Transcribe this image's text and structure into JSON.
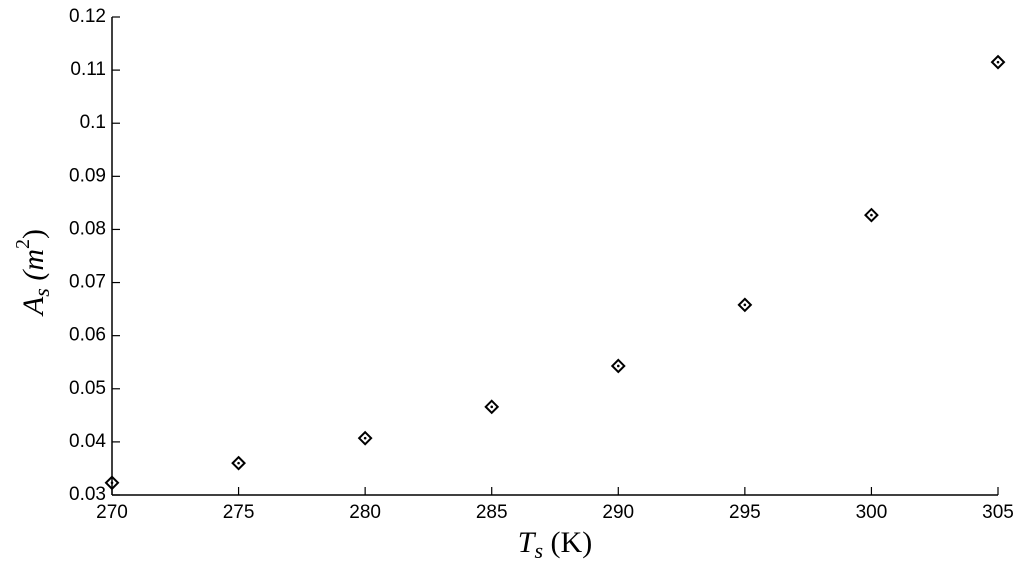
{
  "chart_data": {
    "type": "scatter",
    "xlabel": [
      "T",
      "s",
      " (K)"
    ],
    "ylabel": [
      "A",
      "s",
      " (m",
      "2",
      ")"
    ],
    "x": [
      270,
      275,
      280,
      285,
      290,
      295,
      300,
      305
    ],
    "values": [
      0.0323,
      0.036,
      0.0407,
      0.0466,
      0.0543,
      0.0658,
      0.0827,
      0.1115
    ],
    "color": "#000000",
    "xlim": [
      270,
      305
    ],
    "xticks": [
      270,
      275,
      280,
      285,
      290,
      295,
      300,
      305
    ],
    "ylim": [
      0.03,
      0.12
    ],
    "yticks": [
      0.03,
      0.04,
      0.05,
      0.06,
      0.07,
      0.08,
      0.09,
      0.1,
      0.11,
      0.12
    ],
    "grid": false
  }
}
